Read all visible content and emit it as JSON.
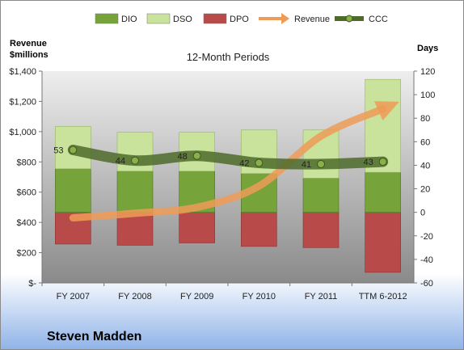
{
  "company": "Steven Madden",
  "chart_data": {
    "type": "bar",
    "title": "12-Month Periods",
    "y_left_label_line1": "Revenue",
    "y_left_label_line2": "$millions",
    "y_right_label": "Days",
    "categories": [
      "FY 2007",
      "FY 2008",
      "FY 2009",
      "FY 2010",
      "FY 2011",
      "TTM 6-2012"
    ],
    "left_axis": {
      "min": 0,
      "max": 1400,
      "step": 200,
      "tick_labels": [
        "$-",
        "$200",
        "$400",
        "$600",
        "$800",
        "$1,000",
        "$1,200",
        "$1,400"
      ]
    },
    "right_axis": {
      "min": -60,
      "max": 120,
      "step": 20,
      "tick_labels": [
        "-60",
        "-40",
        "-20",
        "0",
        "20",
        "40",
        "60",
        "80",
        "100",
        "120"
      ]
    },
    "legend": {
      "position": "top",
      "items": [
        "DIO",
        "DSO",
        "DPO",
        "Revenue",
        "CCC"
      ]
    },
    "series": [
      {
        "name": "DIO",
        "axis": "right",
        "values": [
          37,
          35,
          35,
          33,
          29,
          34
        ],
        "color": "#76a33a"
      },
      {
        "name": "DSO",
        "axis": "right",
        "values": [
          36,
          33,
          33,
          37,
          41,
          79
        ],
        "color": "#c9e29c"
      },
      {
        "name": "DPO",
        "axis": "right",
        "values": [
          -27,
          -28,
          -26,
          -29,
          -30,
          -51
        ],
        "color": "#b84a4a"
      },
      {
        "name": "Revenue",
        "axis": "left",
        "values": [
          430,
          460,
          500,
          640,
          970,
          1150
        ],
        "color": "#ef9b57"
      },
      {
        "name": "CCC",
        "axis": "right",
        "values": [
          53,
          44,
          48,
          42,
          41,
          43
        ],
        "color": "#4e6b2c",
        "data_labels": [
          "53",
          "44",
          "48",
          "42",
          "41",
          "43"
        ]
      }
    ],
    "grid": false
  }
}
